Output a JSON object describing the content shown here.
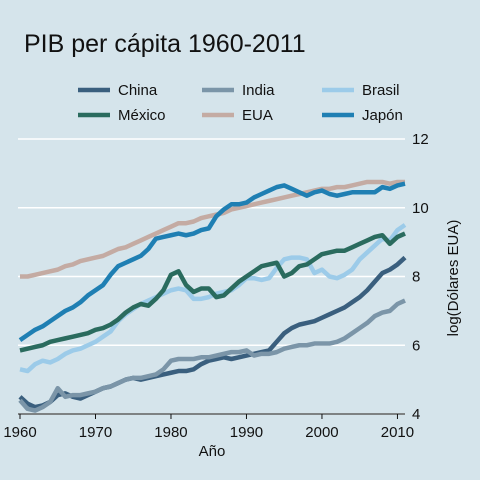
{
  "chart_data": {
    "type": "line",
    "title": "PIB per cápita 1960-2011",
    "xlabel": "Año",
    "ylabel": "log(Dólares EUA)",
    "xlim": [
      1960,
      2011
    ],
    "ylim": [
      4,
      12
    ],
    "xticks": [
      "1960",
      "1970",
      "1980",
      "1990",
      "2000",
      "2010"
    ],
    "yticks": [
      "4",
      "6",
      "8",
      "10",
      "12"
    ],
    "grid": "horizontal",
    "y_axis_side": "right",
    "legend_position": "top",
    "x": [
      1960,
      1961,
      1962,
      1963,
      1964,
      1965,
      1966,
      1967,
      1968,
      1969,
      1970,
      1971,
      1972,
      1973,
      1974,
      1975,
      1976,
      1977,
      1978,
      1979,
      1980,
      1981,
      1982,
      1983,
      1984,
      1985,
      1986,
      1987,
      1988,
      1989,
      1990,
      1991,
      1992,
      1993,
      1994,
      1995,
      1996,
      1997,
      1998,
      1999,
      2000,
      2001,
      2002,
      2003,
      2004,
      2005,
      2006,
      2007,
      2008,
      2009,
      2010,
      2011
    ],
    "series": [
      {
        "name": "China",
        "color": "#3a5f7e",
        "values": [
          4.5,
          4.3,
          4.2,
          4.25,
          4.35,
          4.55,
          4.6,
          4.5,
          4.45,
          4.55,
          4.65,
          4.75,
          4.8,
          4.9,
          5.0,
          5.05,
          5.0,
          5.05,
          5.1,
          5.15,
          5.2,
          5.25,
          5.25,
          5.3,
          5.45,
          5.55,
          5.6,
          5.65,
          5.6,
          5.65,
          5.7,
          5.75,
          5.8,
          5.85,
          6.1,
          6.35,
          6.5,
          6.6,
          6.65,
          6.7,
          6.8,
          6.9,
          7.0,
          7.1,
          7.25,
          7.4,
          7.6,
          7.85,
          8.1,
          8.2,
          8.35,
          8.55
        ]
      },
      {
        "name": "India",
        "color": "#7b95a8",
        "values": [
          4.4,
          4.15,
          4.1,
          4.2,
          4.35,
          4.75,
          4.5,
          4.55,
          4.55,
          4.6,
          4.65,
          4.75,
          4.8,
          4.9,
          5.0,
          5.05,
          5.05,
          5.1,
          5.15,
          5.3,
          5.55,
          5.6,
          5.6,
          5.6,
          5.65,
          5.65,
          5.7,
          5.75,
          5.8,
          5.8,
          5.85,
          5.7,
          5.75,
          5.75,
          5.8,
          5.9,
          5.95,
          6.0,
          6.0,
          6.05,
          6.05,
          6.05,
          6.1,
          6.2,
          6.35,
          6.5,
          6.65,
          6.85,
          6.95,
          7.0,
          7.2,
          7.3
        ]
      },
      {
        "name": "Brasil",
        "color": "#9ccbe9",
        "values": [
          5.3,
          5.25,
          5.45,
          5.55,
          5.5,
          5.6,
          5.75,
          5.85,
          5.9,
          6.0,
          6.1,
          6.25,
          6.4,
          6.7,
          6.9,
          7.05,
          7.2,
          7.3,
          7.4,
          7.5,
          7.6,
          7.65,
          7.6,
          7.35,
          7.35,
          7.4,
          7.5,
          7.55,
          7.6,
          7.75,
          7.95,
          7.95,
          7.9,
          7.95,
          8.25,
          8.5,
          8.55,
          8.55,
          8.5,
          8.1,
          8.2,
          8.0,
          7.95,
          8.05,
          8.2,
          8.5,
          8.7,
          8.9,
          9.1,
          9.05,
          9.35,
          9.5
        ]
      },
      {
        "name": "México",
        "color": "#2a6b5e",
        "values": [
          5.85,
          5.9,
          5.95,
          6.0,
          6.1,
          6.15,
          6.2,
          6.25,
          6.3,
          6.35,
          6.45,
          6.5,
          6.6,
          6.75,
          6.95,
          7.1,
          7.2,
          7.15,
          7.35,
          7.6,
          8.05,
          8.15,
          7.75,
          7.55,
          7.65,
          7.65,
          7.4,
          7.45,
          7.65,
          7.85,
          8.0,
          8.15,
          8.3,
          8.35,
          8.4,
          8.0,
          8.1,
          8.3,
          8.35,
          8.5,
          8.65,
          8.7,
          8.75,
          8.75,
          8.85,
          8.95,
          9.05,
          9.15,
          9.2,
          8.95,
          9.15,
          9.25
        ]
      },
      {
        "name": "EUA",
        "color": "#c4aba3",
        "values": [
          8.0,
          8.0,
          8.05,
          8.1,
          8.15,
          8.2,
          8.3,
          8.35,
          8.45,
          8.5,
          8.55,
          8.6,
          8.7,
          8.8,
          8.85,
          8.95,
          9.05,
          9.15,
          9.25,
          9.35,
          9.45,
          9.55,
          9.55,
          9.6,
          9.7,
          9.75,
          9.8,
          9.85,
          9.95,
          10.0,
          10.05,
          10.1,
          10.15,
          10.2,
          10.25,
          10.3,
          10.35,
          10.4,
          10.45,
          10.5,
          10.55,
          10.55,
          10.6,
          10.6,
          10.65,
          10.7,
          10.75,
          10.75,
          10.75,
          10.7,
          10.75,
          10.75
        ]
      },
      {
        "name": "Japón",
        "color": "#1f7fb3",
        "values": [
          6.15,
          6.3,
          6.45,
          6.55,
          6.7,
          6.85,
          7.0,
          7.1,
          7.25,
          7.45,
          7.6,
          7.75,
          8.05,
          8.3,
          8.4,
          8.5,
          8.6,
          8.8,
          9.1,
          9.15,
          9.2,
          9.25,
          9.2,
          9.25,
          9.35,
          9.4,
          9.75,
          9.95,
          10.1,
          10.1,
          10.15,
          10.3,
          10.4,
          10.5,
          10.6,
          10.65,
          10.55,
          10.45,
          10.35,
          10.45,
          10.5,
          10.4,
          10.35,
          10.4,
          10.45,
          10.45,
          10.45,
          10.45,
          10.6,
          10.55,
          10.65,
          10.7
        ]
      }
    ]
  }
}
